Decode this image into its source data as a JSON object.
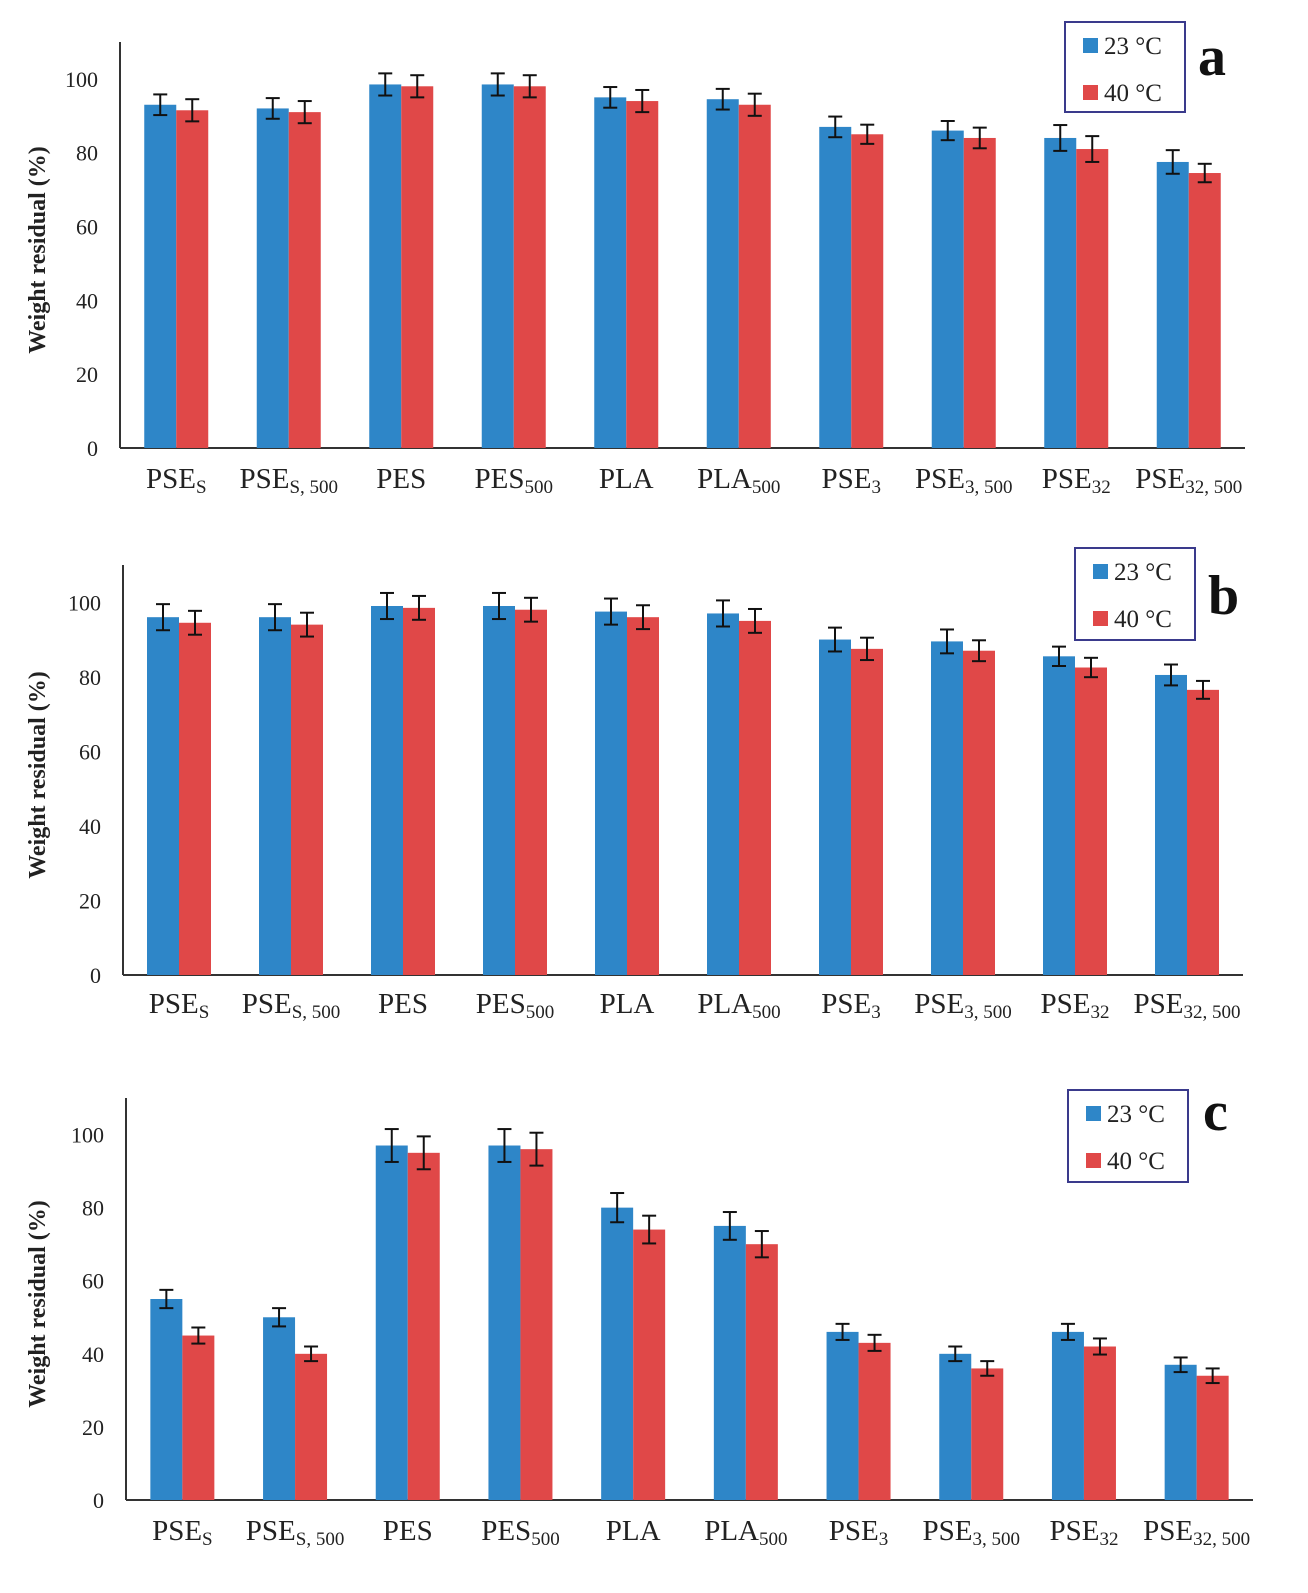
{
  "chart_data": [
    {
      "type": "bar",
      "panel_label": "a",
      "ylabel": "Weight residual (%)",
      "ylim": [
        0,
        110
      ],
      "yticks": [
        "0",
        "20",
        "40",
        "60",
        "80",
        "100"
      ],
      "categories": [
        {
          "base": "PSE",
          "sub": "S"
        },
        {
          "base": "PSE",
          "sub": "S, 500"
        },
        {
          "base": "PES",
          "sub": ""
        },
        {
          "base": "PES",
          "sub": "500"
        },
        {
          "base": "PLA",
          "sub": ""
        },
        {
          "base": "PLA",
          "sub": "500"
        },
        {
          "base": "PSE",
          "sub": "3"
        },
        {
          "base": "PSE",
          "sub": "3, 500"
        },
        {
          "base": "PSE",
          "sub": "32"
        },
        {
          "base": "PSE",
          "sub": "32, 500"
        }
      ],
      "series": [
        {
          "name": "23 °C",
          "color": "#2e86c8",
          "values": [
            93,
            92,
            98.5,
            98.5,
            95,
            94.5,
            87,
            86,
            84,
            77.5
          ],
          "errors": [
            2.8,
            2.8,
            3,
            3,
            2.8,
            2.8,
            2.8,
            2.6,
            3.5,
            3.2
          ]
        },
        {
          "name": "40 °C",
          "color": "#e04848",
          "values": [
            91.5,
            91,
            98,
            98,
            94,
            93,
            85,
            84,
            81,
            74.5
          ],
          "errors": [
            3,
            3,
            3,
            3,
            3,
            3,
            2.6,
            2.8,
            3.5,
            2.5
          ]
        }
      ]
    },
    {
      "type": "bar",
      "panel_label": "b",
      "ylabel": "Weight residual (%)",
      "ylim": [
        0,
        110
      ],
      "yticks": [
        "0",
        "20",
        "40",
        "60",
        "80",
        "100"
      ],
      "categories": [
        {
          "base": "PSE",
          "sub": "S"
        },
        {
          "base": "PSE",
          "sub": "S, 500"
        },
        {
          "base": "PES",
          "sub": ""
        },
        {
          "base": "PES",
          "sub": "500"
        },
        {
          "base": "PLA",
          "sub": ""
        },
        {
          "base": "PLA",
          "sub": "500"
        },
        {
          "base": "PSE",
          "sub": "3"
        },
        {
          "base": "PSE",
          "sub": "3, 500"
        },
        {
          "base": "PSE",
          "sub": "32"
        },
        {
          "base": "PSE",
          "sub": "32, 500"
        }
      ],
      "series": [
        {
          "name": "23 °C",
          "color": "#2e86c8",
          "values": [
            96,
            96,
            99,
            99,
            97.5,
            97,
            90,
            89.5,
            85.5,
            80.5
          ],
          "errors": [
            3.5,
            3.5,
            3.5,
            3.5,
            3.5,
            3.5,
            3.2,
            3.2,
            2.6,
            2.8
          ]
        },
        {
          "name": "40 °C",
          "color": "#e04848",
          "values": [
            94.5,
            94,
            98.5,
            98,
            96,
            95,
            87.5,
            87,
            82.5,
            76.5
          ],
          "errors": [
            3.2,
            3.2,
            3.2,
            3.2,
            3.2,
            3.2,
            3,
            2.8,
            2.6,
            2.4
          ]
        }
      ]
    },
    {
      "type": "bar",
      "panel_label": "c",
      "ylabel": "Weight residual (%)",
      "ylim": [
        0,
        110
      ],
      "yticks": [
        "0",
        "20",
        "40",
        "60",
        "80",
        "100"
      ],
      "categories": [
        {
          "base": "PSE",
          "sub": "S"
        },
        {
          "base": "PSE",
          "sub": "S, 500"
        },
        {
          "base": "PES",
          "sub": ""
        },
        {
          "base": "PES",
          "sub": "500"
        },
        {
          "base": "PLA",
          "sub": ""
        },
        {
          "base": "PLA",
          "sub": "500"
        },
        {
          "base": "PSE",
          "sub": "3"
        },
        {
          "base": "PSE",
          "sub": "3, 500"
        },
        {
          "base": "PSE",
          "sub": "32"
        },
        {
          "base": "PSE",
          "sub": "32, 500"
        }
      ],
      "series": [
        {
          "name": "23 °C",
          "color": "#2e86c8",
          "values": [
            55,
            50,
            97,
            97,
            80,
            75,
            46,
            40,
            46,
            37
          ],
          "errors": [
            2.5,
            2.5,
            4.5,
            4.5,
            4,
            3.8,
            2.2,
            2,
            2.2,
            2
          ]
        },
        {
          "name": "40 °C",
          "color": "#e04848",
          "values": [
            45,
            40,
            95,
            96,
            74,
            70,
            43,
            36,
            42,
            34
          ],
          "errors": [
            2.2,
            2,
            4.5,
            4.5,
            3.8,
            3.6,
            2.2,
            2,
            2.2,
            2
          ]
        }
      ]
    }
  ]
}
